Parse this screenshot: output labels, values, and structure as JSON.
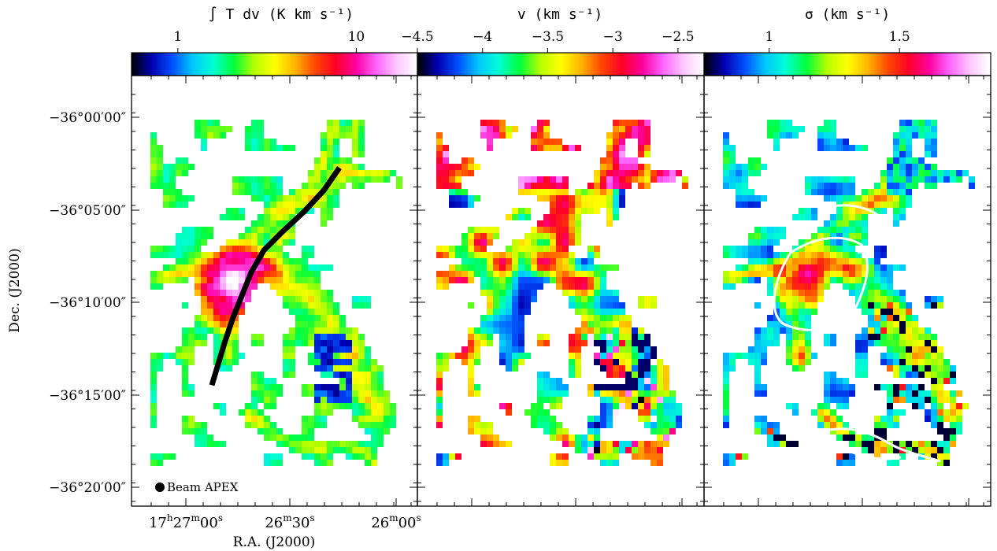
{
  "figure": {
    "xlabel": "R.A. (J2000)",
    "ylabel": "Dec. (J2000)",
    "x_ticks": [
      {
        "h": "17",
        "hs": "h",
        "m": "27",
        "ms": "m",
        "s": "00",
        "ss": "s"
      },
      {
        "h": "",
        "hs": "",
        "m": "26",
        "ms": "m",
        "s": "30",
        "ss": "s"
      },
      {
        "h": "",
        "hs": "",
        "m": "26",
        "ms": "m",
        "s": "00",
        "ss": "s"
      }
    ],
    "y_ticks": [
      "−36°00′00″",
      "−36°05′00″",
      "−36°10′00″",
      "−36°15′00″",
      "−36°20′00″"
    ],
    "beam_label": "Beam APEX"
  },
  "colors": {
    "background": "#ffffff",
    "frame": "#000000",
    "filament": "#000000",
    "contour": "#ffffff"
  },
  "colormap": [
    "#000000",
    "#0000b4",
    "#0050ff",
    "#00c8ff",
    "#00ffd2",
    "#00ff3c",
    "#b4ff00",
    "#ffff00",
    "#ffb400",
    "#ff4600",
    "#ff0028",
    "#ff00a0",
    "#ff64ff",
    "#ffc8ff",
    "#ffffff"
  ],
  "chart_data": [
    {
      "type": "heatmap",
      "title": "∫ T dv (K km s⁻¹)",
      "colorbar_scale": "log",
      "colorbar_range": [
        0.55,
        22
      ],
      "colorbar_ticks": [
        "1",
        "10"
      ],
      "colorbar_tick_values": [
        1,
        10
      ],
      "annotations": [
        "black filament spine",
        "beam marker"
      ]
    },
    {
      "type": "heatmap",
      "title": "v (km s⁻¹)",
      "colorbar_scale": "linear",
      "colorbar_range": [
        -4.5,
        -2.3
      ],
      "colorbar_ticks": [
        "−4.5",
        "−4",
        "−3.5",
        "−3",
        "−2.5"
      ],
      "colorbar_tick_values": [
        -4.5,
        -4,
        -3.5,
        -3,
        -2.5
      ]
    },
    {
      "type": "heatmap",
      "title": "σ (km s⁻¹)",
      "colorbar_scale": "linear",
      "colorbar_range": [
        0.75,
        1.85
      ],
      "colorbar_ticks": [
        "1",
        "1.5"
      ],
      "colorbar_tick_values": [
        1,
        1.5
      ],
      "annotations": [
        "white contours"
      ]
    }
  ]
}
